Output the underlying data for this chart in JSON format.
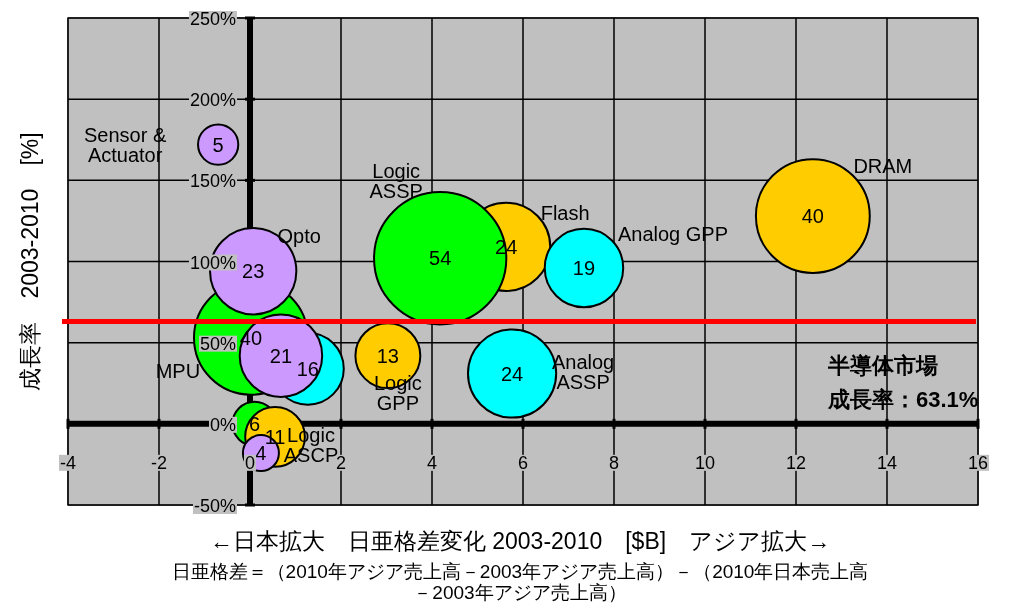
{
  "chart_data": {
    "type": "bubble",
    "xlabel": "←日本拡大　日亜格差変化 2003-2010　[$B]　アジア拡大→",
    "ylabel": "成長率　2003-2010　[%]",
    "x": [
      -0.7,
      12.37,
      5.63,
      4.18,
      7.34,
      0.02,
      0.07,
      1.27,
      0.68,
      3.03,
      5.76,
      0.1,
      0.55,
      0.24
    ],
    "values": [
      172,
      128,
      109,
      102,
      96,
      53,
      94,
      34,
      42,
      42,
      31,
      0,
      -8,
      -18
    ],
    "sizes": [
      5,
      40,
      24,
      54,
      19,
      40,
      23,
      16,
      21,
      13,
      24,
      6,
      11,
      4
    ],
    "value_labels": [
      "5",
      "40",
      "24",
      "54",
      "19",
      "40",
      "23",
      "16",
      "21",
      "13",
      "24",
      "6",
      "11",
      "4"
    ],
    "colors": [
      "#cc99ff",
      "#ffcc00",
      "#ffcc00",
      "#00ff00",
      "#00ffff",
      "#00ff00",
      "#cc99ff",
      "#00ffff",
      "#cc99ff",
      "#ffcc00",
      "#00ffff",
      "#00ff00",
      "#ffcc00",
      "#cc99ff"
    ],
    "xlim": [
      -4,
      16
    ],
    "xticks": [
      -4,
      -2,
      0,
      2,
      4,
      6,
      8,
      10,
      12,
      14,
      16
    ],
    "ylim": [
      -50,
      250
    ],
    "yticks": [
      {
        "value": -50,
        "label": "-50%"
      },
      {
        "value": 0,
        "label": "0%"
      },
      {
        "value": 50,
        "label": "50%"
      },
      {
        "value": 100,
        "label": "100%"
      },
      {
        "value": 150,
        "label": "150%"
      },
      {
        "value": 200,
        "label": "200%"
      },
      {
        "value": 250,
        "label": "250%"
      }
    ],
    "grid": true,
    "ref_lines": [
      {
        "axis": "y",
        "value": 63.1,
        "label": "半導体市場",
        "color": "#ff0000"
      }
    ],
    "annotations": [
      {
        "text": "Sensor &\nActuator",
        "x": -0.7,
        "y": 172
      },
      {
        "text": "DRAM",
        "x": 12.37,
        "y": 128
      },
      {
        "text": "Logic\nASSP",
        "x": 4.18,
        "y": 102
      },
      {
        "text": "Flash",
        "x": 5.63,
        "y": 109
      },
      {
        "text": "Analog GPP",
        "x": 7.34,
        "y": 96
      },
      {
        "text": "Opto",
        "x": 0.07,
        "y": 94
      },
      {
        "text": "MPU",
        "x": 0.02,
        "y": 53
      },
      {
        "text": "Logic\nGPP",
        "x": 3.03,
        "y": 42
      },
      {
        "text": "Analog\nASSP",
        "x": 5.76,
        "y": 31
      },
      {
        "text": "Logic\nASCP",
        "x": 0.55,
        "y": -8
      },
      {
        "text": "成長率：63.1%",
        "y": 63.1
      },
      "日亜格差＝（2010年アジア売上高－2003年アジア売上高）－（2010年日本売上高－2003年アジア売上高）"
    ]
  }
}
